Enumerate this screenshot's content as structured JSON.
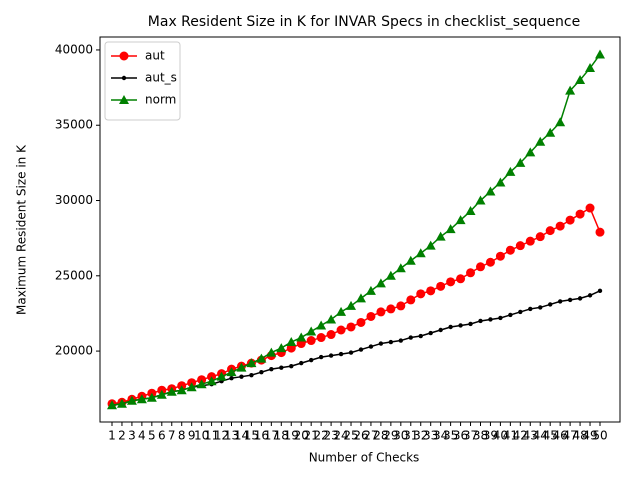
{
  "chart_data": {
    "type": "line",
    "title": "Max Resident Size in K for INVAR Specs in checklist_sequence",
    "x_label": "Number of Checks",
    "y_label": "Maximum Resident Size in K",
    "categories": [
      "1",
      "2",
      "3",
      "4",
      "5",
      "6",
      "7",
      "8",
      "9",
      "10",
      "11",
      "12",
      "13",
      "14",
      "15",
      "16",
      "17",
      "18",
      "19",
      "20",
      "21",
      "22",
      "23",
      "24",
      "25",
      "26",
      "27",
      "28",
      "29",
      "30",
      "31",
      "32",
      "33",
      "34",
      "35",
      "36",
      "37",
      "38",
      "39",
      "40",
      "41",
      "42",
      "43",
      "44",
      "45",
      "46",
      "47",
      "48",
      "49",
      "50"
    ],
    "series": [
      {
        "name": "aut",
        "color": "#ff0000",
        "marker": "circle",
        "values": [
          16500,
          16600,
          16800,
          17000,
          17200,
          17400,
          17500,
          17700,
          17900,
          18100,
          18300,
          18500,
          18800,
          19000,
          19200,
          19400,
          19700,
          19900,
          20200,
          20500,
          20700,
          20900,
          21100,
          21400,
          21600,
          21900,
          22300,
          22600,
          22800,
          23000,
          23400,
          23800,
          24000,
          24300,
          24600,
          24800,
          25200,
          25600,
          25900,
          26300,
          26700,
          27000,
          27300,
          27600,
          28000,
          28300,
          28700,
          29100,
          29500,
          27900
        ]
      },
      {
        "name": "aut_s",
        "color": "#000000",
        "marker": "point",
        "values": [
          16400,
          16500,
          16700,
          16800,
          16900,
          17100,
          17300,
          17400,
          17600,
          17700,
          17800,
          18000,
          18200,
          18300,
          18400,
          18600,
          18800,
          18900,
          19000,
          19200,
          19400,
          19600,
          19700,
          19800,
          19900,
          20100,
          20300,
          20500,
          20600,
          20700,
          20900,
          21000,
          21200,
          21400,
          21600,
          21700,
          21800,
          22000,
          22100,
          22200,
          22400,
          22600,
          22800,
          22900,
          23100,
          23300,
          23400,
          23500,
          23700,
          24000
        ]
      },
      {
        "name": "norm",
        "color": "#008000",
        "marker": "triangle",
        "values": [
          16400,
          16500,
          16700,
          16800,
          16900,
          17100,
          17300,
          17400,
          17600,
          17800,
          18000,
          18300,
          18600,
          18900,
          19200,
          19500,
          19900,
          20200,
          20600,
          20900,
          21300,
          21700,
          22100,
          22600,
          23000,
          23500,
          24000,
          24500,
          25000,
          25500,
          26000,
          26500,
          27000,
          27600,
          28100,
          28700,
          29300,
          30000,
          30600,
          31200,
          31900,
          32500,
          33200,
          33900,
          34500,
          35200,
          37300,
          38000,
          38800,
          39700
        ]
      }
    ],
    "ylim": [
      15290,
      40860
    ],
    "yticks": [
      20000,
      25000,
      30000,
      35000,
      40000
    ],
    "legend": "upper left"
  }
}
